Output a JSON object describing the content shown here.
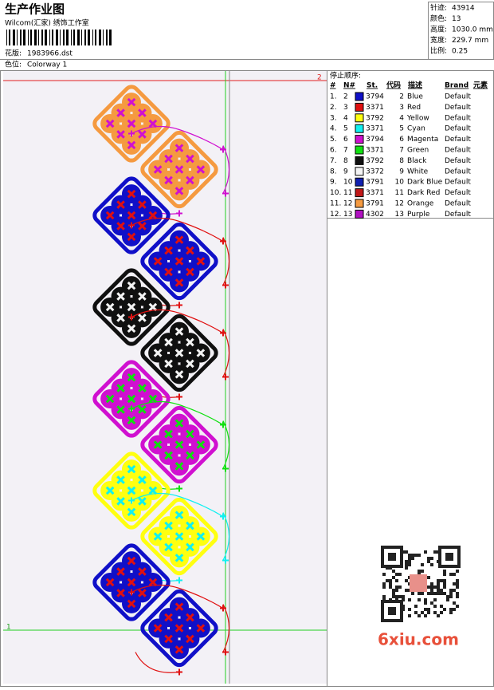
{
  "header": {
    "title": "生产作业图",
    "studio": "Wilcom(汇家) 绣饰工作室",
    "design_label": "花版:",
    "design_file": "1983966.dst",
    "colorway_label": "色位:",
    "colorway": "Colorway 1"
  },
  "info": [
    {
      "label": "针迹:",
      "value": "43914"
    },
    {
      "label": "颜色:",
      "value": "13"
    },
    {
      "label": "高度:",
      "value": "1030.0 mm"
    },
    {
      "label": "宽度:",
      "value": "229.7 mm"
    },
    {
      "label": "比例:",
      "value": "0.25"
    }
  ],
  "table": {
    "title": "停止顺序:",
    "columns": [
      "#",
      "N#",
      "St.",
      "代码",
      "描述",
      "Brand",
      "元素"
    ],
    "rows": [
      [
        "1.",
        "2",
        "#1010c8",
        "3794",
        "2",
        "Blue",
        "Default"
      ],
      [
        "2.",
        "3",
        "#e01010",
        "3371",
        "3",
        "Red",
        "Default"
      ],
      [
        "3.",
        "4",
        "#ffff10",
        "3792",
        "4",
        "Yellow",
        "Default"
      ],
      [
        "4.",
        "5",
        "#10f0f0",
        "3371",
        "5",
        "Cyan",
        "Default"
      ],
      [
        "5.",
        "6",
        "#d010d0",
        "3794",
        "6",
        "Magenta",
        "Default"
      ],
      [
        "6.",
        "7",
        "#10e010",
        "3371",
        "7",
        "Green",
        "Default"
      ],
      [
        "7.",
        "8",
        "#101010",
        "3792",
        "8",
        "Black",
        "Default"
      ],
      [
        "8.",
        "9",
        "#f4f4f4",
        "3372",
        "9",
        "White",
        "Default"
      ],
      [
        "9.",
        "10",
        "#1020b0",
        "3791",
        "10",
        "Dark Blue",
        "Default"
      ],
      [
        "10.",
        "11",
        "#c01818",
        "3371",
        "11",
        "Dark Red",
        "Default"
      ],
      [
        "11.",
        "12",
        "#f59a40",
        "3791",
        "12",
        "Orange",
        "Default"
      ],
      [
        "12.",
        "13",
        "#b010c0",
        "4302",
        "13",
        "Purple",
        "Default"
      ]
    ]
  },
  "design": {
    "markers": [
      "2",
      "1"
    ]
  },
  "watermark": "6xiu.com"
}
